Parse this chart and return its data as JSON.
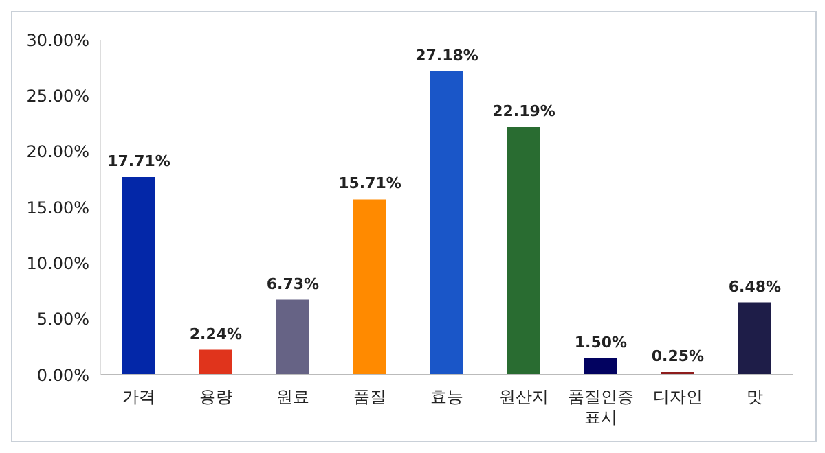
{
  "chart_data": {
    "type": "bar",
    "categories": [
      "가격",
      "용량",
      "원료",
      "품질",
      "효능",
      "원산지",
      "품질인증표시",
      "디자인",
      "맛"
    ],
    "values": [
      17.71,
      2.24,
      6.73,
      15.71,
      27.18,
      22.19,
      1.5,
      0.25,
      6.48
    ],
    "colors": [
      "#0327a8",
      "#e0341c",
      "#666385",
      "#ff8a00",
      "#1a56c8",
      "#296c31",
      "#020260",
      "#8e1c1c",
      "#1e1d48"
    ],
    "value_labels": [
      "17.71%",
      "2.24%",
      "6.73%",
      "15.71%",
      "27.18%",
      "22.19%",
      "1.50%",
      "0.25%",
      "6.48%"
    ],
    "ylim": [
      0,
      30
    ],
    "yticks": [
      {
        "value": 0,
        "label": "0.00%"
      },
      {
        "value": 5,
        "label": "5.00%"
      },
      {
        "value": 10,
        "label": "10.00%"
      },
      {
        "value": 15,
        "label": "15.00%"
      },
      {
        "value": 20,
        "label": "20.00%"
      },
      {
        "value": 25,
        "label": "25.00%"
      },
      {
        "value": 30,
        "label": "30.00%"
      }
    ],
    "grid": false
  }
}
